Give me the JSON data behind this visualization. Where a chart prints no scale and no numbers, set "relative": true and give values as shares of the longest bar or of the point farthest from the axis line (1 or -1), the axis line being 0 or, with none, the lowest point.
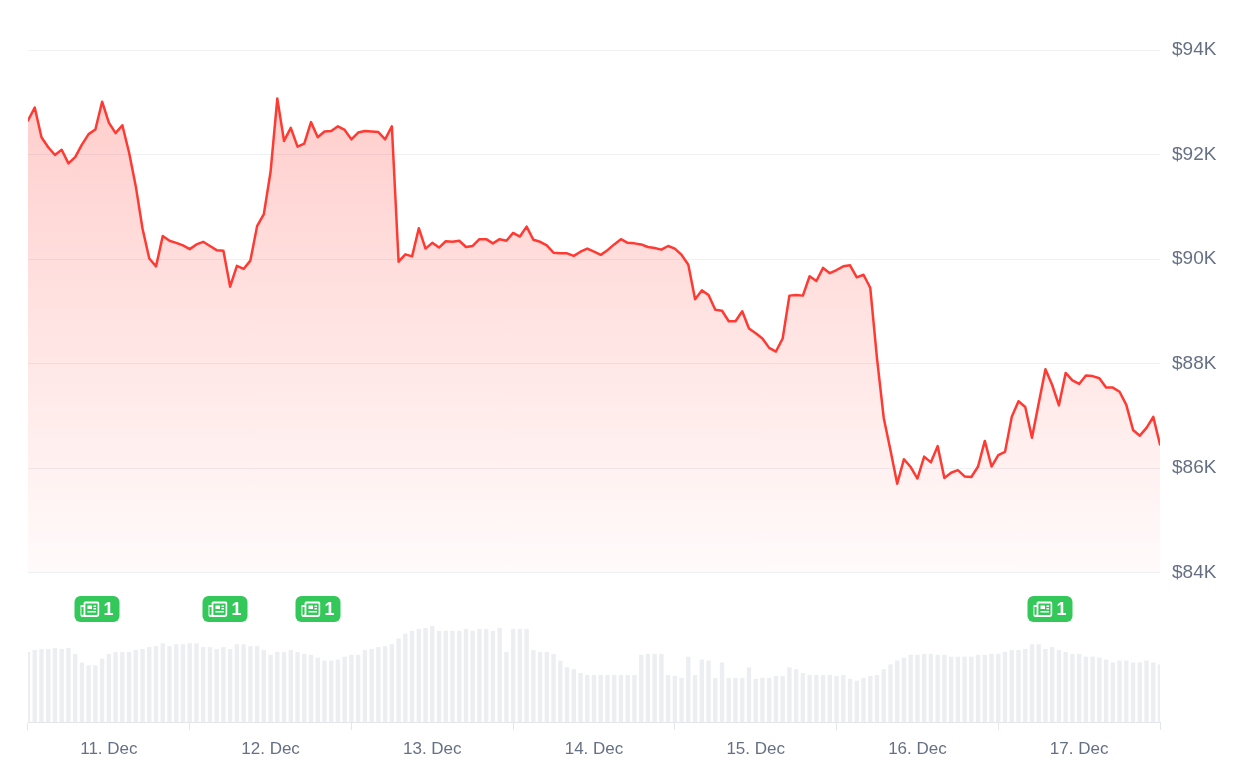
{
  "chart_data": [
    {
      "type": "area",
      "color": "#ff3a33",
      "tick_labels": "y",
      "grid": "y",
      "xlim": [
        "--12-10T12:00",
        "--12-17T12:00"
      ],
      "ylim": [
        84000,
        94000
      ],
      "yticks": [
        {
          "value": 84000,
          "label": "$84K"
        },
        {
          "value": 86000,
          "label": "$86K"
        },
        {
          "value": 88000,
          "label": "$88K"
        },
        {
          "value": 90000,
          "label": "$90K"
        },
        {
          "value": 92000,
          "label": "$92K"
        },
        {
          "value": 94000,
          "label": "$94K"
        }
      ],
      "x": [
        "--12-10T12:00",
        "--12-10T13:00",
        "--12-10T14:00",
        "--12-10T15:00",
        "--12-10T16:00",
        "--12-10T17:00",
        "--12-10T18:00",
        "--12-10T19:00",
        "--12-10T20:00",
        "--12-10T21:00",
        "--12-10T22:00",
        "--12-10T23:00",
        "--12-11T00:00",
        "--12-11T01:00",
        "--12-11T02:00",
        "--12-11T03:00",
        "--12-11T04:00",
        "--12-11T05:00",
        "--12-11T06:00",
        "--12-11T07:00",
        "--12-11T08:00",
        "--12-11T09:00",
        "--12-11T10:00",
        "--12-11T11:00",
        "--12-11T12:00",
        "--12-11T13:00",
        "--12-11T14:00",
        "--12-11T15:00",
        "--12-11T16:00",
        "--12-11T17:00",
        "--12-11T18:00",
        "--12-11T19:00",
        "--12-11T20:00",
        "--12-11T21:00",
        "--12-11T22:00",
        "--12-11T23:00",
        "--12-12T00:00",
        "--12-12T01:00",
        "--12-12T02:00",
        "--12-12T03:00",
        "--12-12T04:00",
        "--12-12T05:00",
        "--12-12T06:00",
        "--12-12T07:00",
        "--12-12T08:00",
        "--12-12T09:00",
        "--12-12T10:00",
        "--12-12T11:00",
        "--12-12T12:00",
        "--12-12T13:00",
        "--12-12T14:00",
        "--12-12T15:00",
        "--12-12T16:00",
        "--12-12T17:00",
        "--12-12T18:00",
        "--12-12T19:00",
        "--12-12T20:00",
        "--12-12T21:00",
        "--12-12T22:00",
        "--12-12T23:00",
        "--12-13T00:00",
        "--12-13T01:00",
        "--12-13T02:00",
        "--12-13T03:00",
        "--12-13T04:00",
        "--12-13T05:00",
        "--12-13T06:00",
        "--12-13T07:00",
        "--12-13T08:00",
        "--12-13T09:00",
        "--12-13T10:00",
        "--12-13T11:00",
        "--12-13T12:00",
        "--12-13T13:00",
        "--12-13T14:00",
        "--12-13T15:00",
        "--12-13T16:00",
        "--12-13T17:00",
        "--12-13T18:00",
        "--12-13T19:00",
        "--12-13T20:00",
        "--12-13T21:00",
        "--12-13T22:00",
        "--12-13T23:00",
        "--12-14T00:00",
        "--12-14T01:00",
        "--12-14T02:00",
        "--12-14T03:00",
        "--12-14T04:00",
        "--12-14T05:00",
        "--12-14T06:00",
        "--12-14T07:00",
        "--12-14T08:00",
        "--12-14T09:00",
        "--12-14T10:00",
        "--12-14T11:00",
        "--12-14T12:00",
        "--12-14T13:00",
        "--12-14T14:00",
        "--12-14T15:00",
        "--12-14T16:00",
        "--12-14T17:00",
        "--12-14T18:00",
        "--12-14T19:00",
        "--12-14T20:00",
        "--12-14T21:00",
        "--12-14T22:00",
        "--12-14T23:00",
        "--12-15T00:00",
        "--12-15T01:00",
        "--12-15T02:00",
        "--12-15T03:00",
        "--12-15T04:00",
        "--12-15T05:00",
        "--12-15T06:00",
        "--12-15T07:00",
        "--12-15T08:00",
        "--12-15T09:00",
        "--12-15T10:00",
        "--12-15T11:00",
        "--12-15T12:00",
        "--12-15T13:00",
        "--12-15T14:00",
        "--12-15T15:00",
        "--12-15T16:00",
        "--12-15T17:00",
        "--12-15T18:00",
        "--12-15T19:00",
        "--12-15T20:00",
        "--12-15T21:00",
        "--12-15T22:00",
        "--12-15T23:00",
        "--12-16T00:00",
        "--12-16T01:00",
        "--12-16T02:00",
        "--12-16T03:00",
        "--12-16T04:00",
        "--12-16T05:00",
        "--12-16T06:00",
        "--12-16T07:00",
        "--12-16T08:00",
        "--12-16T09:00",
        "--12-16T10:00",
        "--12-16T11:00",
        "--12-16T12:00",
        "--12-16T13:00",
        "--12-16T14:00",
        "--12-16T15:00",
        "--12-16T16:00",
        "--12-16T17:00",
        "--12-16T18:00",
        "--12-16T19:00",
        "--12-16T20:00",
        "--12-16T21:00",
        "--12-16T22:00",
        "--12-16T23:00",
        "--12-17T00:00",
        "--12-17T01:00",
        "--12-17T02:00",
        "--12-17T03:00",
        "--12-17T04:00",
        "--12-17T05:00",
        "--12-17T06:00",
        "--12-17T07:00",
        "--12-17T08:00",
        "--12-17T09:00",
        "--12-17T10:00",
        "--12-17T11:00",
        "--12-17T12:00"
      ],
      "values": [
        92650,
        92900,
        92330,
        92140,
        91990,
        92090,
        91830,
        91950,
        92190,
        92390,
        92480,
        93010,
        92610,
        92410,
        92560,
        92040,
        91390,
        90580,
        90010,
        89860,
        90440,
        90350,
        90310,
        90260,
        90190,
        90280,
        90330,
        90250,
        90170,
        90160,
        89470,
        89870,
        89810,
        89970,
        90630,
        90860,
        91670,
        93070,
        92260,
        92510,
        92150,
        92210,
        92620,
        92330,
        92440,
        92450,
        92540,
        92470,
        92290,
        92420,
        92450,
        92440,
        92430,
        92290,
        92540,
        89950,
        90090,
        90050,
        90590,
        90200,
        90310,
        90220,
        90340,
        90330,
        90350,
        90230,
        90250,
        90380,
        90380,
        90300,
        90380,
        90350,
        90500,
        90430,
        90620,
        90370,
        90330,
        90260,
        90120,
        90110,
        90110,
        90060,
        90140,
        90200,
        90140,
        90080,
        90170,
        90280,
        90380,
        90310,
        90300,
        90280,
        90230,
        90210,
        90180,
        90250,
        90200,
        90080,
        89890,
        89230,
        89400,
        89310,
        89030,
        89010,
        88810,
        88810,
        89000,
        88670,
        88580,
        88480,
        88300,
        88230,
        88480,
        89300,
        89310,
        89300,
        89670,
        89580,
        89830,
        89730,
        89790,
        89860,
        89880,
        89650,
        89700,
        89450,
        88100,
        86960,
        86340,
        85700,
        86170,
        86020,
        85800,
        86220,
        86110,
        86420,
        85810,
        85910,
        85960,
        85840,
        85830,
        86030,
        86520,
        86030,
        86250,
        86310,
        86980,
        87280,
        87170,
        86580,
        87240,
        87890,
        87590,
        87200,
        87820,
        87680,
        87610,
        87770,
        87760,
        87720,
        87540,
        87540,
        87460,
        87210,
        86730,
        86620,
        86770,
        86980,
        86450
      ]
    },
    {
      "type": "bar",
      "color": "#eceef2",
      "relative": true,
      "xlim": [
        "--12-10T12:00",
        "--12-17T12:00"
      ],
      "xticks": [
        {
          "value": "--12-11",
          "label": "11. Dec"
        },
        {
          "value": "--12-12",
          "label": "12. Dec"
        },
        {
          "value": "--12-13",
          "label": "13. Dec"
        },
        {
          "value": "--12-14",
          "label": "14. Dec"
        },
        {
          "value": "--12-15",
          "label": "15. Dec"
        },
        {
          "value": "--12-16",
          "label": "16. Dec"
        },
        {
          "value": "--12-17",
          "label": "17. Dec"
        }
      ],
      "annotations": [
        "1",
        "1",
        "1",
        "1"
      ],
      "x": [
        "--12-10T12:00",
        "--12-10T13:00",
        "--12-10T14:00",
        "--12-10T15:00",
        "--12-10T16:00",
        "--12-10T17:00",
        "--12-10T18:00",
        "--12-10T19:00",
        "--12-10T20:00",
        "--12-10T21:00",
        "--12-10T22:00",
        "--12-10T23:00",
        "--12-11T00:00",
        "--12-11T01:00",
        "--12-11T02:00",
        "--12-11T03:00",
        "--12-11T04:00",
        "--12-11T05:00",
        "--12-11T06:00",
        "--12-11T07:00",
        "--12-11T08:00",
        "--12-11T09:00",
        "--12-11T10:00",
        "--12-11T11:00",
        "--12-11T12:00",
        "--12-11T13:00",
        "--12-11T14:00",
        "--12-11T15:00",
        "--12-11T16:00",
        "--12-11T17:00",
        "--12-11T18:00",
        "--12-11T19:00",
        "--12-11T20:00",
        "--12-11T21:00",
        "--12-11T22:00",
        "--12-11T23:00",
        "--12-12T00:00",
        "--12-12T01:00",
        "--12-12T02:00",
        "--12-12T03:00",
        "--12-12T04:00",
        "--12-12T05:00",
        "--12-12T06:00",
        "--12-12T07:00",
        "--12-12T08:00",
        "--12-12T09:00",
        "--12-12T10:00",
        "--12-12T11:00",
        "--12-12T12:00",
        "--12-12T13:00",
        "--12-12T14:00",
        "--12-12T15:00",
        "--12-12T16:00",
        "--12-12T17:00",
        "--12-12T18:00",
        "--12-12T19:00",
        "--12-12T20:00",
        "--12-12T21:00",
        "--12-12T22:00",
        "--12-12T23:00",
        "--12-13T00:00",
        "--12-13T01:00",
        "--12-13T02:00",
        "--12-13T03:00",
        "--12-13T04:00",
        "--12-13T05:00",
        "--12-13T06:00",
        "--12-13T07:00",
        "--12-13T08:00",
        "--12-13T09:00",
        "--12-13T10:00",
        "--12-13T11:00",
        "--12-13T12:00",
        "--12-13T13:00",
        "--12-13T14:00",
        "--12-13T15:00",
        "--12-13T16:00",
        "--12-13T17:00",
        "--12-13T18:00",
        "--12-13T19:00",
        "--12-13T20:00",
        "--12-13T21:00",
        "--12-13T22:00",
        "--12-13T23:00",
        "--12-14T00:00",
        "--12-14T01:00",
        "--12-14T02:00",
        "--12-14T03:00",
        "--12-14T04:00",
        "--12-14T05:00",
        "--12-14T06:00",
        "--12-14T07:00",
        "--12-14T08:00",
        "--12-14T09:00",
        "--12-14T10:00",
        "--12-14T11:00",
        "--12-14T12:00",
        "--12-14T13:00",
        "--12-14T14:00",
        "--12-14T15:00",
        "--12-14T16:00",
        "--12-14T17:00",
        "--12-14T18:00",
        "--12-14T19:00",
        "--12-14T20:00",
        "--12-14T21:00",
        "--12-14T22:00",
        "--12-14T23:00",
        "--12-15T00:00",
        "--12-15T01:00",
        "--12-15T02:00",
        "--12-15T03:00",
        "--12-15T04:00",
        "--12-15T05:00",
        "--12-15T06:00",
        "--12-15T07:00",
        "--12-15T08:00",
        "--12-15T09:00",
        "--12-15T10:00",
        "--12-15T11:00",
        "--12-15T12:00",
        "--12-15T13:00",
        "--12-15T14:00",
        "--12-15T15:00",
        "--12-15T16:00",
        "--12-15T17:00",
        "--12-15T18:00",
        "--12-15T19:00",
        "--12-15T20:00",
        "--12-15T21:00",
        "--12-15T22:00",
        "--12-15T23:00",
        "--12-16T00:00",
        "--12-16T01:00",
        "--12-16T02:00",
        "--12-16T03:00",
        "--12-16T04:00",
        "--12-16T05:00",
        "--12-16T06:00",
        "--12-16T07:00",
        "--12-16T08:00",
        "--12-16T09:00",
        "--12-16T10:00",
        "--12-16T11:00",
        "--12-16T12:00",
        "--12-16T13:00",
        "--12-16T14:00",
        "--12-16T15:00",
        "--12-16T16:00",
        "--12-16T17:00",
        "--12-16T18:00",
        "--12-16T19:00",
        "--12-16T20:00",
        "--12-16T21:00",
        "--12-16T22:00",
        "--12-16T23:00",
        "--12-17T00:00",
        "--12-17T01:00",
        "--12-17T02:00",
        "--12-17T03:00",
        "--12-17T04:00",
        "--12-17T05:00",
        "--12-17T06:00",
        "--12-17T07:00",
        "--12-17T08:00",
        "--12-17T09:00",
        "--12-17T10:00",
        "--12-17T11:00",
        "--12-17T12:00"
      ],
      "values": [
        0.73,
        0.75,
        0.76,
        0.76,
        0.77,
        0.76,
        0.77,
        0.71,
        0.62,
        0.59,
        0.59,
        0.66,
        0.71,
        0.73,
        0.73,
        0.73,
        0.75,
        0.76,
        0.78,
        0.79,
        0.82,
        0.79,
        0.81,
        0.81,
        0.82,
        0.82,
        0.78,
        0.78,
        0.76,
        0.78,
        0.76,
        0.81,
        0.81,
        0.79,
        0.79,
        0.75,
        0.7,
        0.73,
        0.73,
        0.75,
        0.73,
        0.71,
        0.7,
        0.67,
        0.64,
        0.64,
        0.65,
        0.68,
        0.7,
        0.7,
        0.75,
        0.76,
        0.78,
        0.79,
        0.81,
        0.87,
        0.92,
        0.95,
        0.97,
        0.98,
        1,
        0.95,
        0.95,
        0.95,
        0.95,
        0.97,
        0.95,
        0.97,
        0.97,
        0.95,
        0.98,
        0.73,
        0.97,
        0.97,
        0.97,
        0.75,
        0.73,
        0.73,
        0.71,
        0.64,
        0.57,
        0.55,
        0.51,
        0.49,
        0.49,
        0.49,
        0.49,
        0.49,
        0.49,
        0.49,
        0.49,
        0.7,
        0.71,
        0.71,
        0.71,
        0.49,
        0.48,
        0.46,
        0.68,
        0.49,
        0.65,
        0.64,
        0.46,
        0.62,
        0.46,
        0.46,
        0.46,
        0.57,
        0.45,
        0.46,
        0.46,
        0.48,
        0.48,
        0.57,
        0.55,
        0.51,
        0.49,
        0.49,
        0.49,
        0.49,
        0.48,
        0.49,
        0.45,
        0.43,
        0.46,
        0.48,
        0.49,
        0.55,
        0.6,
        0.64,
        0.67,
        0.7,
        0.7,
        0.71,
        0.71,
        0.7,
        0.7,
        0.68,
        0.68,
        0.68,
        0.68,
        0.7,
        0.7,
        0.71,
        0.71,
        0.73,
        0.75,
        0.75,
        0.76,
        0.81,
        0.81,
        0.76,
        0.78,
        0.75,
        0.73,
        0.71,
        0.71,
        0.68,
        0.68,
        0.67,
        0.65,
        0.62,
        0.64,
        0.64,
        0.62,
        0.62,
        0.64,
        0.62,
        0.6
      ]
    }
  ]
}
